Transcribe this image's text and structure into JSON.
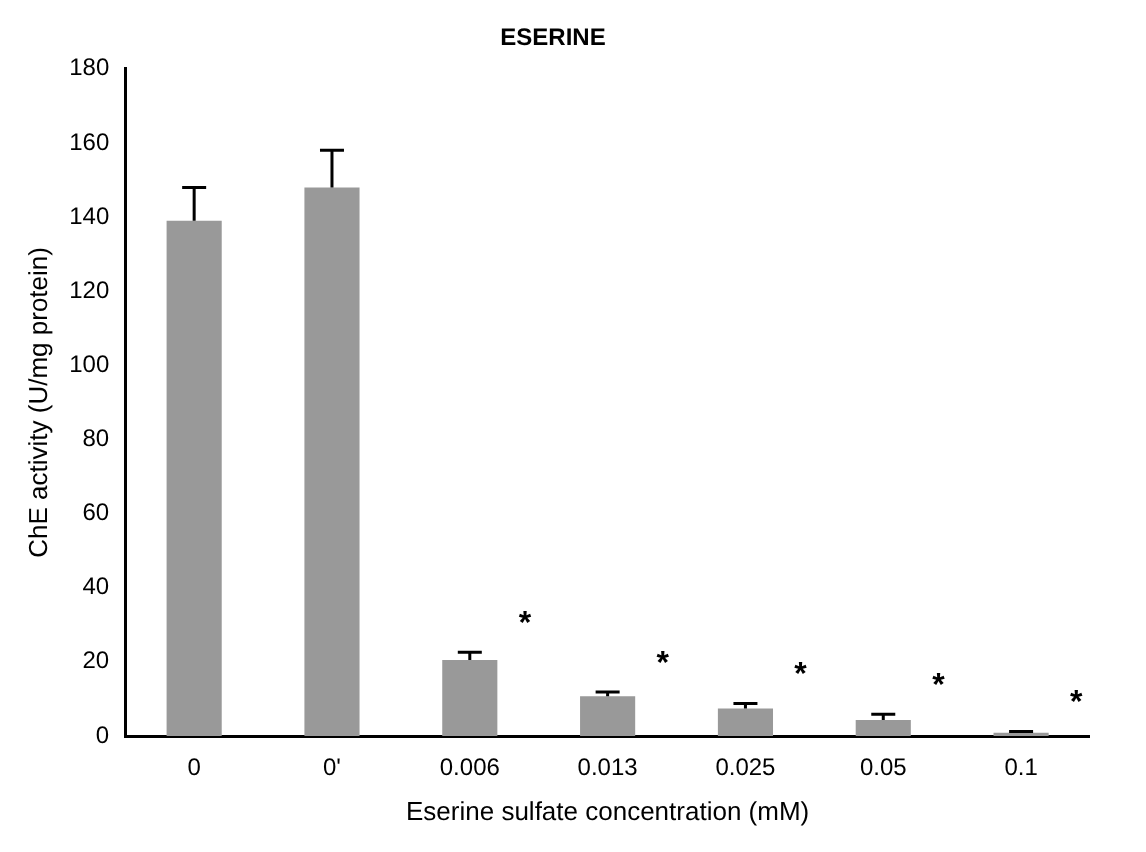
{
  "chart_data": {
    "type": "bar",
    "title": "ESERINE",
    "xlabel": "Eserine sulfate concentration (mM)",
    "ylabel": "ChE activity (U/mg protein)",
    "categories": [
      "0",
      "0'",
      "0.006",
      "0.013",
      "0.025",
      "0.05",
      "0.1"
    ],
    "values": [
      139,
      148,
      20.5,
      10.7,
      7.4,
      4.3,
      0.9
    ],
    "errors": [
      [
        139,
        148
      ],
      [
        148,
        158
      ],
      [
        20.5,
        22.6
      ],
      [
        10.7,
        11.9
      ],
      [
        7.4,
        8.8
      ],
      [
        4.3,
        5.9
      ],
      [
        0.9,
        1.2
      ]
    ],
    "color": "#999999",
    "ylim": [
      0,
      180
    ],
    "yticks": [
      0,
      20,
      40,
      60,
      80,
      100,
      120,
      140,
      160,
      180
    ],
    "grid": false,
    "legend": false,
    "annotations": [
      "*",
      "*",
      "*",
      "*",
      "*"
    ]
  }
}
